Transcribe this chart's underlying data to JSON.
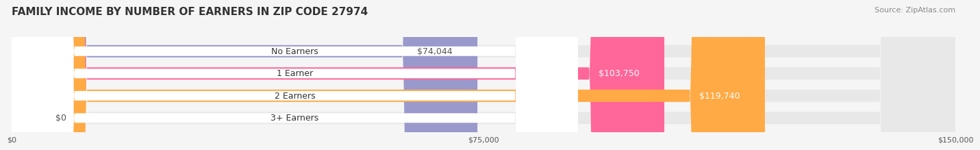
{
  "title": "FAMILY INCOME BY NUMBER OF EARNERS IN ZIP CODE 27974",
  "source": "Source: ZipAtlas.com",
  "categories": [
    "No Earners",
    "1 Earner",
    "2 Earners",
    "3+ Earners"
  ],
  "values": [
    74044,
    103750,
    119740,
    0
  ],
  "labels": [
    "$74,044",
    "$103,750",
    "$119,740",
    "$0"
  ],
  "bar_colors": [
    "#9999cc",
    "#ff6699",
    "#ffaa44",
    "#ffbbaa"
  ],
  "label_colors": [
    "#555555",
    "#ffffff",
    "#ffffff",
    "#555555"
  ],
  "xlim": [
    0,
    150000
  ],
  "xticks": [
    0,
    75000,
    150000
  ],
  "xticklabels": [
    "$0",
    "$75,000",
    "$150,000"
  ],
  "bar_height": 0.55,
  "background_color": "#f5f5f5",
  "title_fontsize": 11,
  "source_fontsize": 8,
  "label_fontsize": 9,
  "category_fontsize": 9
}
